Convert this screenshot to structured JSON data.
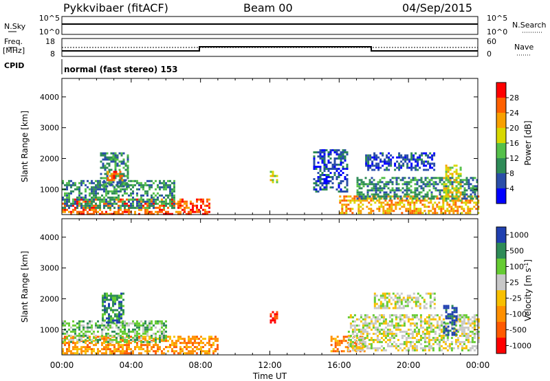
{
  "header": {
    "station": "Pykkvibaer (fitACF)",
    "beam": "Beam 00",
    "date": "04/Sep/2015"
  },
  "status_panels": {
    "nsky_label": "N.Sky",
    "nsky_ticks": [
      "10^5",
      "10^0"
    ],
    "nsearch_label": "N.Search",
    "nsearch_ticks": [
      "10^5",
      "10^0"
    ],
    "freq_label_top": "Freq.",
    "freq_label_unit": "[MHz]",
    "freq_ticks": [
      "18",
      "8"
    ],
    "nave_label": "Nave",
    "nave_ticks": [
      "60",
      "0"
    ],
    "cpid_label": "CPID",
    "cpid_text": "normal (fast stereo) 153"
  },
  "chart_data": [
    {
      "type": "heatmap",
      "name": "power",
      "ylabel": "Slant Range [km]",
      "yticks": [
        "1000",
        "2000",
        "3000",
        "4000"
      ],
      "ylim": [
        180,
        4600
      ],
      "xlim": [
        0,
        24
      ],
      "colorbar_label": "Power [dB]",
      "colorbar_ticks": [
        "4",
        "8",
        "12",
        "16",
        "20",
        "24",
        "28"
      ],
      "colorbar_range": [
        0,
        32
      ],
      "colors": [
        "#0000ff",
        "#2a4ea8",
        "#2e8b57",
        "#55c04a",
        "#d8d800",
        "#f8a000",
        "#ff6000",
        "#ff0000"
      ],
      "regions": [
        {
          "t0": 0.0,
          "t1": 8.5,
          "r0": 200,
          "r1": 700,
          "level": 26
        },
        {
          "t0": 0.0,
          "t1": 6.5,
          "r0": 400,
          "r1": 1300,
          "level": 9
        },
        {
          "t0": 2.2,
          "t1": 3.8,
          "r0": 1100,
          "r1": 2200,
          "level": 11
        },
        {
          "t0": 2.6,
          "t1": 3.5,
          "r0": 1300,
          "r1": 1600,
          "level": 24
        },
        {
          "t0": 12.0,
          "t1": 12.4,
          "r0": 1200,
          "r1": 1600,
          "level": 16
        },
        {
          "t0": 14.5,
          "t1": 16.5,
          "r0": 900,
          "r1": 2300,
          "level": 6
        },
        {
          "t0": 16.0,
          "t1": 24.0,
          "r0": 250,
          "r1": 800,
          "level": 22
        },
        {
          "t0": 17.0,
          "t1": 24.0,
          "r0": 700,
          "r1": 1400,
          "level": 8
        },
        {
          "t0": 17.5,
          "t1": 21.5,
          "r0": 1600,
          "r1": 2200,
          "level": 6
        },
        {
          "t0": 22.0,
          "t1": 23.0,
          "r0": 600,
          "r1": 1800,
          "level": 17
        }
      ]
    },
    {
      "type": "heatmap",
      "name": "velocity",
      "ylabel": "Slant Range [km]",
      "yticks": [
        "1000",
        "2000",
        "3000",
        "4000"
      ],
      "ylim": [
        180,
        4600
      ],
      "xlim": [
        0,
        24
      ],
      "xticks": [
        "00:00",
        "04:00",
        "08:00",
        "12:00",
        "16:00",
        "20:00",
        "00:00"
      ],
      "xlabel": "Time UT",
      "colorbar_label": "Velocity [m s",
      "colorbar_label_sup": "-1",
      "colorbar_label_end": "]",
      "colorbar_ticks": [
        "1000",
        "500",
        "100",
        "25",
        "-25",
        "-100",
        "-500",
        "-1000"
      ],
      "colors": [
        "#2040b0",
        "#2e8b57",
        "#66cc33",
        "#c8c8c8",
        "#f8c000",
        "#ff9000",
        "#ff5a00",
        "#ff0000"
      ],
      "regions": [
        {
          "t0": 0.0,
          "t1": 9.0,
          "r0": 200,
          "r1": 800,
          "level": 5
        },
        {
          "t0": 0.0,
          "t1": 6.0,
          "r0": 600,
          "r1": 1300,
          "level": 2
        },
        {
          "t0": 2.3,
          "t1": 3.6,
          "r0": 1200,
          "r1": 2200,
          "level": 1
        },
        {
          "t0": 12.0,
          "t1": 12.4,
          "r0": 1200,
          "r1": 1600,
          "level": 7
        },
        {
          "t0": 15.5,
          "t1": 17.5,
          "r0": 300,
          "r1": 800,
          "level": 5
        },
        {
          "t0": 16.5,
          "t1": 24.0,
          "r0": 300,
          "r1": 1500,
          "level": 3
        },
        {
          "t0": 18.0,
          "t1": 21.5,
          "r0": 1700,
          "r1": 2200,
          "level": 3
        },
        {
          "t0": 22.0,
          "t1": 22.8,
          "r0": 800,
          "r1": 1800,
          "level": 0
        }
      ]
    }
  ]
}
